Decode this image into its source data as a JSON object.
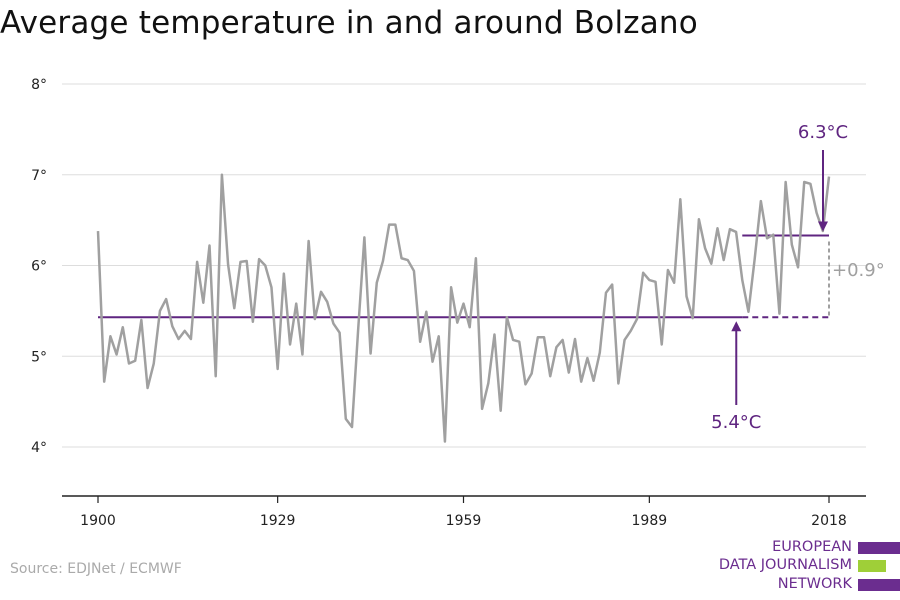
{
  "title": "Average temperature in and around Bolzano",
  "source": "Source: EDJNet / ECMWF",
  "logo": {
    "lines": [
      "EUROPEAN",
      "DATA JOURNALISM",
      "NETWORK"
    ]
  },
  "colors": {
    "line": "#a0a0a0",
    "accent": "#5f2580",
    "grid": "#dddddd",
    "logo_purple": "#6b2d8f",
    "logo_green": "#9fcf38"
  },
  "chart_data": {
    "type": "line",
    "title": "Average temperature in and around Bolzano",
    "xlim": [
      1900,
      2018
    ],
    "ylim": [
      3.5,
      8.2
    ],
    "x_ticks": [
      1900,
      1929,
      1959,
      1989,
      2018
    ],
    "y_ticks": [
      4,
      5,
      6,
      7,
      8
    ],
    "y_tick_labels": [
      "4°",
      "5°",
      "6°",
      "7°",
      "8°"
    ],
    "grid": true,
    "series": [
      {
        "x_start": 1900,
        "values": [
          6.38,
          4.72,
          5.22,
          5.02,
          5.32,
          4.92,
          4.95,
          5.4,
          4.65,
          4.92,
          5.5,
          5.63,
          5.33,
          5.19,
          5.28,
          5.19,
          6.04,
          5.59,
          6.22,
          4.78,
          7.0,
          6.01,
          5.53,
          6.04,
          6.05,
          5.38,
          6.07,
          6.0,
          5.76,
          4.86,
          5.91,
          5.13,
          5.58,
          5.02,
          6.27,
          5.41,
          5.71,
          5.6,
          5.36,
          5.26,
          4.31,
          4.22,
          5.3,
          6.31,
          5.03,
          5.81,
          6.05,
          6.45,
          6.45,
          6.08,
          6.06,
          5.94,
          5.16,
          5.49,
          4.94,
          5.22,
          4.06,
          5.76,
          5.37,
          5.58,
          5.32,
          6.08,
          4.42,
          4.7,
          5.24,
          4.4,
          5.43,
          5.18,
          5.16,
          4.69,
          4.81,
          5.21,
          5.21,
          4.78,
          5.1,
          5.18,
          4.82,
          5.19,
          4.72,
          4.98,
          4.73,
          5.04,
          5.7,
          5.79,
          4.7,
          5.18,
          5.28,
          5.41,
          5.92,
          5.84,
          5.82,
          5.13,
          5.95,
          5.81,
          6.73,
          5.66,
          5.42,
          6.51,
          6.19,
          6.02,
          6.41,
          6.06,
          6.4,
          6.37,
          5.84,
          5.49,
          6.07,
          6.71,
          6.3,
          6.34,
          5.47,
          6.92,
          6.23,
          5.98,
          6.92,
          6.9,
          6.58,
          6.38,
          6.98
        ]
      }
    ],
    "reference_lines": [
      {
        "label": "5.4°C",
        "value": 5.43,
        "x_from": 1900,
        "x_to": 2004,
        "style": "solid",
        "dashed_to": 2018
      },
      {
        "label": "6.3°C",
        "value": 6.33,
        "x_from": 2004,
        "x_to": 2018,
        "style": "solid"
      }
    ],
    "difference_label": "+0.9°"
  }
}
